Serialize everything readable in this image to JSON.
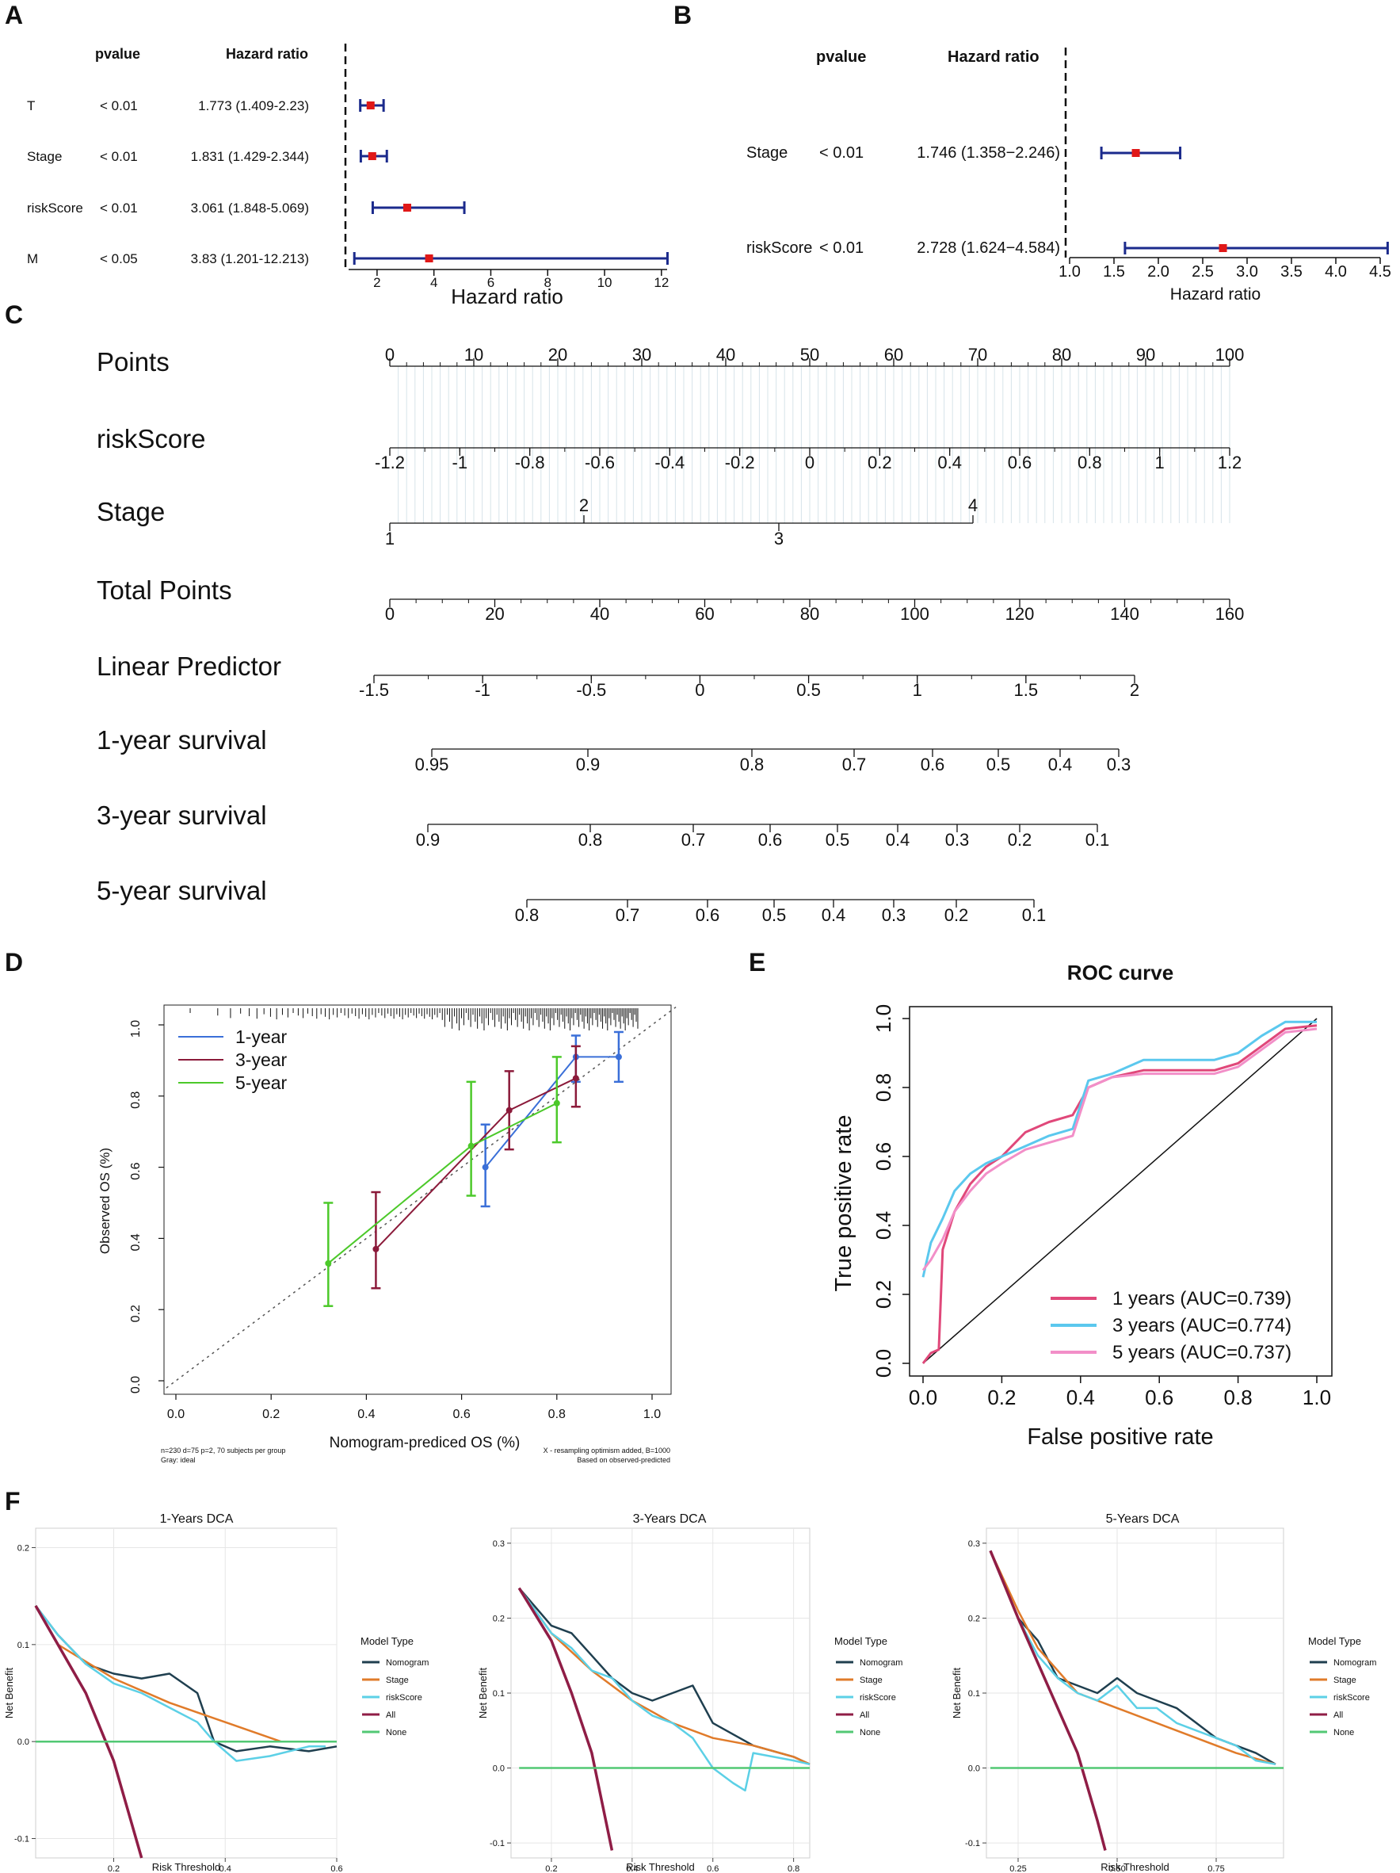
{
  "panel_letters": [
    "A",
    "B",
    "C",
    "D",
    "E",
    "F"
  ],
  "panel_a": {
    "header_pvalue": "pvalue",
    "header_hr": "Hazard ratio",
    "xlabel": "Hazard ratio",
    "ticks": [
      "2",
      "4",
      "6",
      "8",
      "10",
      "12"
    ],
    "rows": [
      {
        "name": "T",
        "p": "< 0.01",
        "hr_text": "1.773 (1.409-2.23)",
        "hr": 1.773,
        "lo": 1.409,
        "hi": 2.23
      },
      {
        "name": "Stage",
        "p": "< 0.01",
        "hr_text": "1.831 (1.429-2.344)",
        "hr": 1.831,
        "lo": 1.429,
        "hi": 2.344
      },
      {
        "name": "riskScore",
        "p": "< 0.01",
        "hr_text": "3.061 (1.848-5.069)",
        "hr": 3.061,
        "lo": 1.848,
        "hi": 5.069
      },
      {
        "name": "M",
        "p": "< 0.05",
        "hr_text": "3.83 (1.201-12.213)",
        "hr": 3.83,
        "lo": 1.201,
        "hi": 12.213
      }
    ]
  },
  "panel_b": {
    "header_pvalue": "pvalue",
    "header_hr": "Hazard ratio",
    "xlabel": "Hazard ratio",
    "ticks": [
      "1.0",
      "1.5",
      "2.0",
      "2.5",
      "3.0",
      "3.5",
      "4.0",
      "4.5"
    ],
    "rows": [
      {
        "name": "Stage",
        "p": "< 0.01",
        "hr_text": "1.746 (1.358−2.246)",
        "hr": 1.746,
        "lo": 1.358,
        "hi": 2.246
      },
      {
        "name": "riskScore",
        "p": "< 0.01",
        "hr_text": "2.728 (1.624−4.584)",
        "hr": 2.728,
        "lo": 1.624,
        "hi": 4.584
      }
    ]
  },
  "panel_c": {
    "rows": [
      {
        "label": "Points",
        "ticks_above": [
          "0",
          "10",
          "20",
          "30",
          "40",
          "50",
          "60",
          "70",
          "80",
          "90",
          "100"
        ],
        "ticks_below": []
      },
      {
        "label": "riskScore",
        "ticks_above": [],
        "ticks_below": [
          "-1.2",
          "-1",
          "-0.8",
          "-0.6",
          "-0.4",
          "-0.2",
          "0",
          "0.2",
          "0.4",
          "0.6",
          "0.8",
          "1",
          "1.2"
        ]
      },
      {
        "label": "Stage",
        "ticks_above": [
          "2",
          "4"
        ],
        "ticks_below": [
          "1",
          "3"
        ]
      },
      {
        "label": "Total Points",
        "ticks_above": [],
        "ticks_below": [
          "0",
          "20",
          "40",
          "60",
          "80",
          "100",
          "120",
          "140",
          "160"
        ]
      },
      {
        "label": "Linear Predictor",
        "ticks_above": [],
        "ticks_below": [
          "-1.5",
          "-1",
          "-0.5",
          "0",
          "0.5",
          "1",
          "1.5",
          "2"
        ]
      },
      {
        "label": "1-year survival",
        "ticks_above": [],
        "ticks_below": [
          "0.95",
          "0.9",
          "0.8",
          "0.7",
          "0.6",
          "0.5",
          "0.4",
          "0.3"
        ]
      },
      {
        "label": "3-year survival",
        "ticks_above": [],
        "ticks_below": [
          "0.9",
          "0.8",
          "0.7",
          "0.6",
          "0.5",
          "0.4",
          "0.3",
          "0.2",
          "0.1"
        ]
      },
      {
        "label": "5-year survival",
        "ticks_above": [],
        "ticks_below": [
          "0.8",
          "0.7",
          "0.6",
          "0.5",
          "0.4",
          "0.3",
          "0.2",
          "0.1"
        ]
      }
    ]
  },
  "panel_d": {
    "xlabel": "Nomogram-prediced OS (%)",
    "ylabel": "Observed OS (%)",
    "xticks": [
      "0.0",
      "0.2",
      "0.4",
      "0.6",
      "0.8",
      "1.0"
    ],
    "yticks": [
      "0.0",
      "0.2",
      "0.4",
      "0.6",
      "0.8",
      "1.0"
    ],
    "note_left_1": "n=230 d=75 p=2, 70 subjects per group",
    "note_left_2": "Gray: ideal",
    "note_right_1": "X - resampling optimism added, B=1000",
    "note_right_2": "Based on observed-predicted",
    "legend": [
      "1-year",
      "3-year",
      "5-year"
    ],
    "colors": {
      "1-year": "#3a6fd8",
      "3-year": "#8b1a3a",
      "5-year": "#4cc92a"
    }
  },
  "panel_e": {
    "title": "ROC curve",
    "xlabel": "False positive rate",
    "ylabel": "True positive rate",
    "xticks": [
      "0.0",
      "0.2",
      "0.4",
      "0.6",
      "0.8",
      "1.0"
    ],
    "yticks": [
      "0.0",
      "0.2",
      "0.4",
      "0.6",
      "0.8",
      "1.0"
    ],
    "legend": [
      {
        "label": "1 years (AUC=0.739)",
        "color": "#e0487a"
      },
      {
        "label": "3 years (AUC=0.774)",
        "color": "#5bc8ee"
      },
      {
        "label": "5 years (AUC=0.737)",
        "color": "#f28fc8"
      }
    ]
  },
  "panel_f": {
    "ylabel": "Net Benefit",
    "xlabel": "Risk Threshold",
    "legend_title": "Model Type",
    "legend": [
      {
        "label": "Nomogram",
        "color": "#1f3f4f"
      },
      {
        "label": "Stage",
        "color": "#e07b2a"
      },
      {
        "label": "riskScore",
        "color": "#5cd0e6"
      },
      {
        "label": "All",
        "color": "#8f1d46"
      },
      {
        "label": "None",
        "color": "#52c874"
      }
    ],
    "plots": [
      {
        "title": "1-Years DCA",
        "xticks": [
          "0.2",
          "0.4",
          "0.6"
        ],
        "yticks": [
          "-0.1",
          "0.0",
          "0.1",
          "0.2"
        ]
      },
      {
        "title": "3-Years DCA",
        "xticks": [
          "0.2",
          "0.4",
          "0.6",
          "0.8"
        ],
        "yticks": [
          "-0.1",
          "0.0",
          "0.1",
          "0.2",
          "0.3"
        ]
      },
      {
        "title": "5-Years DCA",
        "xticks": [
          "0.25",
          "0.50",
          "0.75"
        ],
        "yticks": [
          "-0.1",
          "0.0",
          "0.1",
          "0.2",
          "0.3"
        ]
      }
    ]
  },
  "chart_data": [
    {
      "type": "forest",
      "panel": "A",
      "categories": [
        "T",
        "Stage",
        "riskScore",
        "M"
      ],
      "values": [
        1.773,
        1.831,
        3.061,
        3.83
      ],
      "lower": [
        1.409,
        1.429,
        1.848,
        1.201
      ],
      "upper": [
        2.23,
        2.344,
        5.069,
        12.213
      ],
      "xlabel": "Hazard ratio",
      "xlim": [
        1,
        12.2
      ]
    },
    {
      "type": "forest",
      "panel": "B",
      "categories": [
        "Stage",
        "riskScore"
      ],
      "values": [
        1.746,
        2.728
      ],
      "lower": [
        1.358,
        1.624
      ],
      "upper": [
        2.246,
        4.584
      ],
      "xlabel": "Hazard ratio",
      "xlim": [
        1.0,
        4.5
      ]
    },
    {
      "type": "nomogram",
      "panel": "C",
      "rows": [
        "Points",
        "riskScore",
        "Stage",
        "Total Points",
        "Linear Predictor",
        "1-year survival",
        "3-year survival",
        "5-year survival"
      ]
    },
    {
      "type": "line",
      "panel": "D",
      "xlabel": "Nomogram-prediced OS (%)",
      "ylabel": "Observed OS (%)",
      "xlim": [
        0,
        1
      ],
      "ylim": [
        0,
        1
      ],
      "series": [
        {
          "name": "1-year",
          "x": [
            0.65,
            0.84,
            0.93
          ],
          "y": [
            0.6,
            0.91,
            0.91
          ],
          "lo": [
            0.49,
            0.84,
            0.84
          ],
          "hi": [
            0.72,
            0.97,
            0.98
          ]
        },
        {
          "name": "3-year",
          "x": [
            0.42,
            0.7,
            0.84
          ],
          "y": [
            0.37,
            0.76,
            0.85
          ],
          "lo": [
            0.26,
            0.65,
            0.77
          ],
          "hi": [
            0.53,
            0.87,
            0.94
          ]
        },
        {
          "name": "5-year",
          "x": [
            0.32,
            0.62,
            0.8
          ],
          "y": [
            0.33,
            0.66,
            0.78
          ],
          "lo": [
            0.21,
            0.52,
            0.67
          ],
          "hi": [
            0.5,
            0.84,
            0.91
          ]
        }
      ]
    },
    {
      "type": "line",
      "panel": "E",
      "title": "ROC curve",
      "xlabel": "False positive rate",
      "ylabel": "True positive rate",
      "xlim": [
        0,
        1
      ],
      "ylim": [
        0,
        1
      ],
      "series": [
        {
          "name": "1 years (AUC=0.739)",
          "x": [
            0,
            0.02,
            0.04,
            0.05,
            0.08,
            0.12,
            0.16,
            0.2,
            0.26,
            0.32,
            0.38,
            0.42,
            0.48,
            0.56,
            0.66,
            0.74,
            0.8,
            0.86,
            0.92,
            1.0
          ],
          "y": [
            0,
            0.03,
            0.04,
            0.33,
            0.44,
            0.52,
            0.57,
            0.6,
            0.67,
            0.7,
            0.72,
            0.8,
            0.83,
            0.85,
            0.85,
            0.85,
            0.87,
            0.92,
            0.97,
            0.98
          ]
        },
        {
          "name": "3 years (AUC=0.774)",
          "x": [
            0,
            0.02,
            0.05,
            0.08,
            0.12,
            0.16,
            0.2,
            0.26,
            0.32,
            0.38,
            0.42,
            0.48,
            0.56,
            0.66,
            0.74,
            0.8,
            0.86,
            0.92,
            1.0
          ],
          "y": [
            0.25,
            0.35,
            0.42,
            0.5,
            0.55,
            0.58,
            0.6,
            0.63,
            0.66,
            0.68,
            0.82,
            0.84,
            0.88,
            0.88,
            0.88,
            0.9,
            0.95,
            0.99,
            0.99
          ]
        },
        {
          "name": "5 years (AUC=0.737)",
          "x": [
            0,
            0.02,
            0.05,
            0.08,
            0.12,
            0.16,
            0.2,
            0.26,
            0.32,
            0.38,
            0.42,
            0.48,
            0.56,
            0.66,
            0.74,
            0.8,
            0.86,
            0.92,
            1.0
          ],
          "y": [
            0.27,
            0.3,
            0.36,
            0.44,
            0.5,
            0.55,
            0.58,
            0.62,
            0.64,
            0.66,
            0.8,
            0.83,
            0.84,
            0.84,
            0.84,
            0.86,
            0.91,
            0.96,
            0.97
          ]
        }
      ]
    },
    {
      "type": "line",
      "panel": "F1",
      "title": "1-Years DCA",
      "xlabel": "Risk Threshold",
      "ylabel": "Net Benefit",
      "xlim": [
        0.06,
        0.6
      ],
      "ylim": [
        -0.12,
        0.22
      ],
      "series": [
        {
          "name": "Nomogram",
          "x": [
            0.06,
            0.1,
            0.15,
            0.2,
            0.25,
            0.3,
            0.35,
            0.38,
            0.42,
            0.48,
            0.55,
            0.6
          ],
          "y": [
            0.14,
            0.11,
            0.08,
            0.07,
            0.065,
            0.07,
            0.05,
            0.0,
            -0.01,
            -0.005,
            -0.01,
            -0.005
          ]
        },
        {
          "name": "Stage",
          "x": [
            0.06,
            0.1,
            0.2,
            0.3,
            0.4,
            0.5
          ],
          "y": [
            0.14,
            0.1,
            0.065,
            0.04,
            0.02,
            0.0
          ]
        },
        {
          "name": "riskScore",
          "x": [
            0.06,
            0.1,
            0.15,
            0.2,
            0.25,
            0.3,
            0.35,
            0.38,
            0.42,
            0.48,
            0.55,
            0.58
          ],
          "y": [
            0.14,
            0.11,
            0.08,
            0.06,
            0.05,
            0.035,
            0.02,
            0.0,
            -0.02,
            -0.015,
            -0.005,
            -0.005
          ]
        },
        {
          "name": "All",
          "x": [
            0.06,
            0.1,
            0.15,
            0.2,
            0.25
          ],
          "y": [
            0.14,
            0.1,
            0.05,
            -0.02,
            -0.12
          ]
        },
        {
          "name": "None",
          "x": [
            0.06,
            0.6
          ],
          "y": [
            0,
            0
          ]
        }
      ]
    },
    {
      "type": "line",
      "panel": "F2",
      "title": "3-Years DCA",
      "xlabel": "Risk Threshold",
      "ylabel": "Net Benefit",
      "xlim": [
        0.1,
        0.84
      ],
      "ylim": [
        -0.12,
        0.32
      ],
      "series": [
        {
          "name": "Nomogram",
          "x": [
            0.12,
            0.2,
            0.25,
            0.3,
            0.35,
            0.4,
            0.45,
            0.5,
            0.55,
            0.6,
            0.7,
            0.8,
            0.84
          ],
          "y": [
            0.24,
            0.19,
            0.18,
            0.15,
            0.12,
            0.1,
            0.09,
            0.1,
            0.11,
            0.06,
            0.03,
            0.015,
            0.005
          ]
        },
        {
          "name": "Stage",
          "x": [
            0.12,
            0.2,
            0.3,
            0.4,
            0.5,
            0.6,
            0.7,
            0.8,
            0.84
          ],
          "y": [
            0.24,
            0.18,
            0.13,
            0.09,
            0.06,
            0.04,
            0.03,
            0.015,
            0.005
          ]
        },
        {
          "name": "riskScore",
          "x": [
            0.12,
            0.2,
            0.25,
            0.3,
            0.35,
            0.4,
            0.45,
            0.5,
            0.55,
            0.6,
            0.65,
            0.68,
            0.7,
            0.8,
            0.84
          ],
          "y": [
            0.24,
            0.18,
            0.16,
            0.13,
            0.12,
            0.09,
            0.07,
            0.06,
            0.04,
            0.0,
            -0.02,
            -0.03,
            0.02,
            0.01,
            0.005
          ]
        },
        {
          "name": "All",
          "x": [
            0.12,
            0.2,
            0.25,
            0.3,
            0.35
          ],
          "y": [
            0.24,
            0.17,
            0.1,
            0.02,
            -0.11
          ]
        },
        {
          "name": "None",
          "x": [
            0.12,
            0.84
          ],
          "y": [
            0,
            0
          ]
        }
      ]
    },
    {
      "type": "line",
      "panel": "F3",
      "title": "5-Years DCA",
      "xlabel": "Risk Threshold",
      "ylabel": "Net Benefit",
      "xlim": [
        0.17,
        0.92
      ],
      "ylim": [
        -0.12,
        0.32
      ],
      "series": [
        {
          "name": "Nomogram",
          "x": [
            0.18,
            0.25,
            0.3,
            0.35,
            0.4,
            0.45,
            0.5,
            0.55,
            0.6,
            0.65,
            0.7,
            0.75,
            0.8,
            0.85,
            0.9
          ],
          "y": [
            0.29,
            0.2,
            0.17,
            0.12,
            0.11,
            0.1,
            0.12,
            0.1,
            0.09,
            0.08,
            0.06,
            0.04,
            0.03,
            0.02,
            0.005
          ]
        },
        {
          "name": "Stage",
          "x": [
            0.18,
            0.25,
            0.3,
            0.4,
            0.5,
            0.6,
            0.7,
            0.8,
            0.9
          ],
          "y": [
            0.29,
            0.21,
            0.16,
            0.1,
            0.08,
            0.06,
            0.04,
            0.02,
            0.005
          ]
        },
        {
          "name": "riskScore",
          "x": [
            0.18,
            0.25,
            0.3,
            0.35,
            0.4,
            0.45,
            0.5,
            0.55,
            0.6,
            0.65,
            0.7,
            0.75,
            0.8,
            0.85,
            0.9
          ],
          "y": [
            0.29,
            0.2,
            0.15,
            0.12,
            0.1,
            0.09,
            0.11,
            0.08,
            0.08,
            0.06,
            0.05,
            0.04,
            0.03,
            0.01,
            0.005
          ]
        },
        {
          "name": "All",
          "x": [
            0.18,
            0.25,
            0.3,
            0.35,
            0.4,
            0.45,
            0.47
          ],
          "y": [
            0.29,
            0.2,
            0.14,
            0.08,
            0.02,
            -0.07,
            -0.11
          ]
        },
        {
          "name": "None",
          "x": [
            0.18,
            0.92
          ],
          "y": [
            0,
            0
          ]
        }
      ]
    }
  ]
}
